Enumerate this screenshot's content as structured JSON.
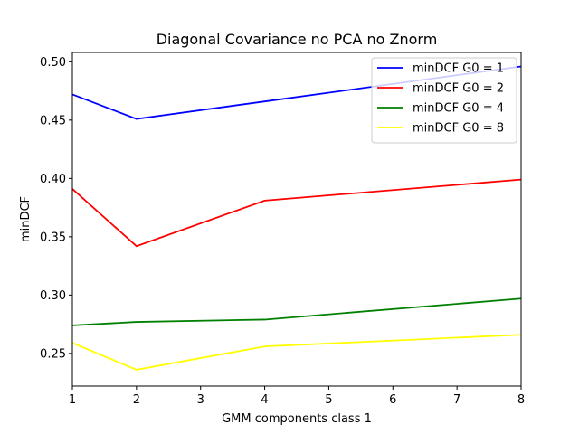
{
  "chart_data": {
    "type": "line",
    "title": "Diagonal Covariance no PCA no Znorm",
    "xlabel": "GMM components class 1",
    "ylabel": "minDCF",
    "x": [
      1,
      2,
      4,
      8
    ],
    "xlim": [
      1,
      8
    ],
    "ylim": [
      0.222,
      0.508
    ],
    "xticks": [
      1,
      2,
      3,
      4,
      5,
      6,
      7,
      8
    ],
    "yticks": [
      0.25,
      0.3,
      0.35,
      0.4,
      0.45,
      0.5
    ],
    "ytick_labels": [
      "0.25",
      "0.30",
      "0.35",
      "0.40",
      "0.45",
      "0.50"
    ],
    "grid": false,
    "legend_position": "top-right",
    "series": [
      {
        "name": "minDCF G0 = 1",
        "color": "#0000ff",
        "values": [
          0.472,
          0.451,
          0.466,
          0.496
        ]
      },
      {
        "name": "minDCF G0 = 2",
        "color": "#ff0000",
        "values": [
          0.391,
          0.342,
          0.381,
          0.399
        ]
      },
      {
        "name": "minDCF G0 = 4",
        "color": "#008000",
        "values": [
          0.274,
          0.277,
          0.279,
          0.297
        ]
      },
      {
        "name": "minDCF G0 = 8",
        "color": "#ffff00",
        "values": [
          0.259,
          0.236,
          0.256,
          0.266
        ]
      }
    ]
  }
}
